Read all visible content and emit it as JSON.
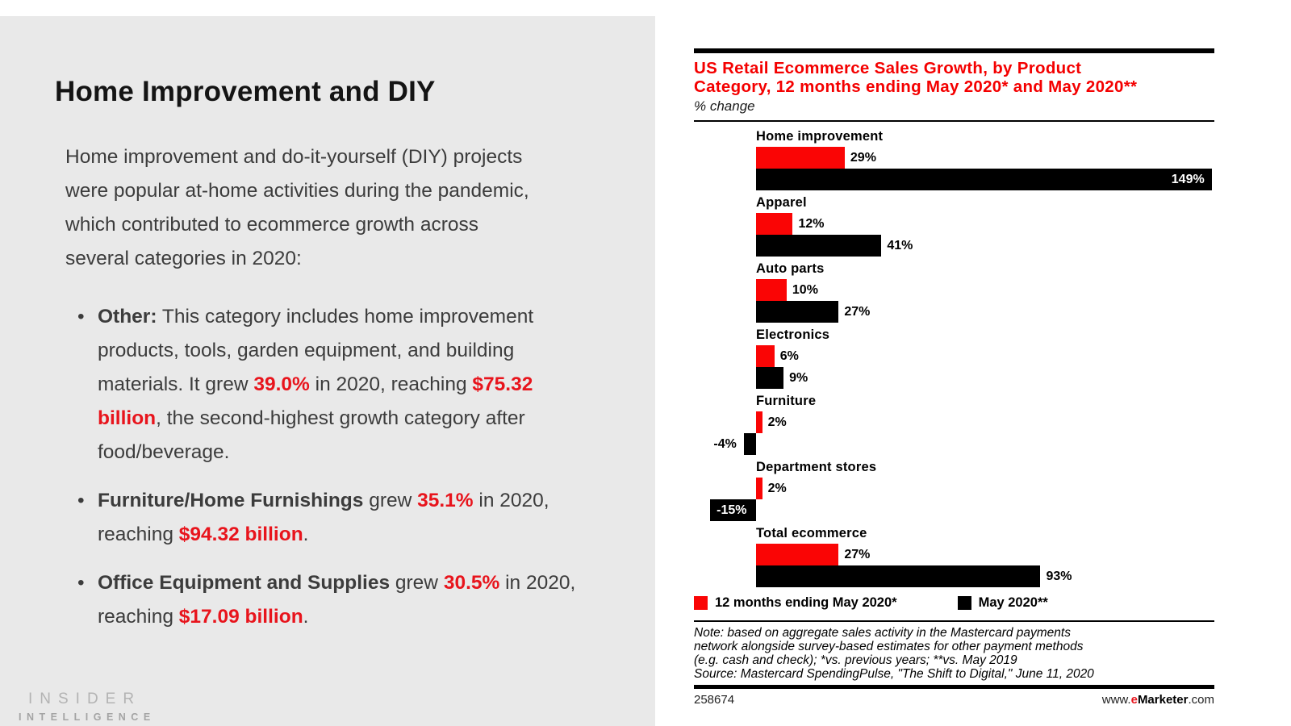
{
  "page": {
    "background": "#ffffff",
    "panel_color": "#e9e9e9"
  },
  "left_panel": {
    "heading": "Home Improvement and DIY",
    "intro": "Home improvement and do-it-yourself (DIY) projects were popular at-home activities during the pandemic, which contributed to ecommerce growth across several categories in 2020:",
    "bullet_marker": "•",
    "bullets": [
      [
        {
          "t": "Other:",
          "s": "b"
        },
        {
          "t": " This category includes home improvement products, tools, garden equipment, and building materials. It grew ",
          "s": "n"
        },
        {
          "t": "39.0%",
          "s": "r"
        },
        {
          "t": " in 2020, reaching ",
          "s": "n"
        },
        {
          "t": "$75.32 billion",
          "s": "r"
        },
        {
          "t": ", the second-highest growth category after food/beverage.",
          "s": "n"
        }
      ],
      [
        {
          "t": "Furniture/Home Furnishings",
          "s": "b"
        },
        {
          "t": " grew ",
          "s": "n"
        },
        {
          "t": "35.1%",
          "s": "r"
        },
        {
          "t": " in 2020, reaching ",
          "s": "n"
        },
        {
          "t": "$94.32 billion",
          "s": "r"
        },
        {
          "t": ".",
          "s": "n"
        }
      ],
      [
        {
          "t": "Office Equipment and Supplies",
          "s": "b"
        },
        {
          "t": " grew ",
          "s": "n"
        },
        {
          "t": "30.5%",
          "s": "r"
        },
        {
          "t": " in 2020, reaching ",
          "s": "n"
        },
        {
          "t": "$17.09 billion",
          "s": "r"
        },
        {
          "t": ".",
          "s": "n"
        }
      ]
    ],
    "logo_line1": "INSIDER",
    "logo_line2": "INTELLIGENCE"
  },
  "chart_data": {
    "type": "bar",
    "orientation": "horizontal",
    "title": "US Retail Ecommerce Sales Growth, by Product Category, 12 months ending May 2020* and May 2020**",
    "title_lines": [
      "US Retail Ecommerce Sales Growth, by Product",
      "Category, 12 months ending May 2020* and May 2020**"
    ],
    "subtitle": "% change",
    "unit": "%",
    "axis_range": [
      -15,
      149
    ],
    "categories": [
      "Home improvement",
      "Apparel",
      "Auto parts",
      "Electronics",
      "Furniture",
      "Department stores",
      "Total ecommerce"
    ],
    "series": [
      {
        "name": "12 months ending May 2020*",
        "color": "#fa0505",
        "values": [
          29,
          12,
          10,
          6,
          2,
          2,
          27
        ]
      },
      {
        "name": "May 2020**",
        "color": "#000000",
        "values": [
          149,
          41,
          27,
          9,
          -4,
          -15,
          93
        ]
      }
    ],
    "rows": [
      {
        "category": "Home improvement",
        "red": {
          "value": 29,
          "label": "29%",
          "label_pos": "right"
        },
        "black": {
          "value": 149,
          "label": "149%",
          "label_pos": "inside-right"
        }
      },
      {
        "category": "Apparel",
        "red": {
          "value": 12,
          "label": "12%",
          "label_pos": "right"
        },
        "black": {
          "value": 41,
          "label": "41%",
          "label_pos": "right"
        }
      },
      {
        "category": "Auto parts",
        "red": {
          "value": 10,
          "label": "10%",
          "label_pos": "right"
        },
        "black": {
          "value": 27,
          "label": "27%",
          "label_pos": "right"
        }
      },
      {
        "category": "Electronics",
        "red": {
          "value": 6,
          "label": "6%",
          "label_pos": "right"
        },
        "black": {
          "value": 9,
          "label": "9%",
          "label_pos": "right"
        }
      },
      {
        "category": "Furniture",
        "red": {
          "value": 2,
          "label": "2%",
          "label_pos": "right"
        },
        "black": {
          "value": -4,
          "label": "-4%",
          "label_pos": "left"
        }
      },
      {
        "category": "Department stores",
        "red": {
          "value": 2,
          "label": "2%",
          "label_pos": "right"
        },
        "black": {
          "value": -15,
          "label": "-15%",
          "label_pos": "inside-left"
        }
      },
      {
        "category": "Total ecommerce",
        "red": {
          "value": 27,
          "label": "27%",
          "label_pos": "right"
        },
        "black": {
          "value": 93,
          "label": "93%",
          "label_pos": "right"
        }
      }
    ],
    "legend": [
      {
        "label": "12 months ending May 2020*",
        "color": "#fa0505"
      },
      {
        "label": "May 2020**",
        "color": "#000000"
      }
    ],
    "note_lines": [
      "Note: based on aggregate sales activity in the Mastercard payments",
      "network alongside survey-based estimates for other payment methods",
      "(e.g. cash and check); *vs. previous years; **vs. May 2019",
      "Source: Mastercard SpendingPulse, \"The Shift to Digital,\" June 11, 2020"
    ],
    "chart_id": "258674",
    "website": {
      "prefix": "www.",
      "e": "e",
      "brand": "Marketer",
      "suffix": ".com"
    }
  }
}
